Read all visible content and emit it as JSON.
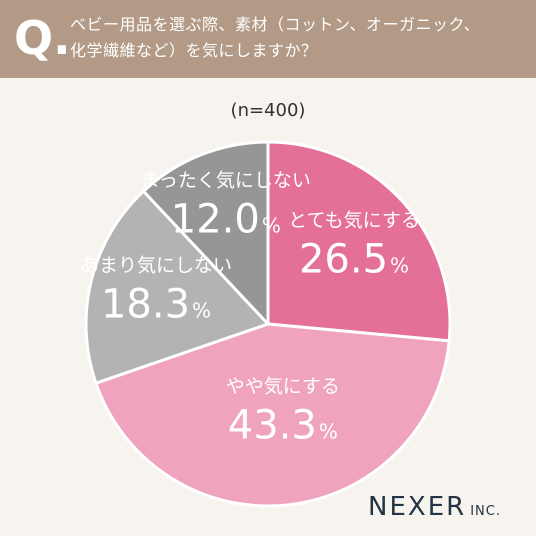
{
  "header": {
    "q_mark": "Q.",
    "question_line1": "ベビー用品を選ぶ際、素材（コットン、オーガニック、",
    "question_line2": "化学繊維など）を気にしますか？"
  },
  "sample_note": "(n=400)",
  "logo": {
    "name": "NEXER",
    "suffix": "INC."
  },
  "colors": {
    "banner": "#b29a86",
    "very": "#e46f98",
    "somewhat": "#f0a3bf",
    "not_much": "#b3b3b3",
    "not_at_all": "#969696"
  },
  "chart_data": {
    "type": "pie",
    "title": "",
    "start": "12 o'clock, clockwise",
    "slices": [
      {
        "label": "とても気にする",
        "value": 26.5,
        "display": "26.5",
        "unit": "%",
        "color": "#e46f98"
      },
      {
        "label": "やや気にする",
        "value": 43.3,
        "display": "43.3",
        "unit": "%",
        "color": "#f0a3bf"
      },
      {
        "label": "あまり気にしない",
        "value": 18.3,
        "display": "18.3",
        "unit": "%",
        "color": "#b3b3b3"
      },
      {
        "label": "まったく気にしない",
        "value": 12.0,
        "display": "12.0",
        "unit": "%",
        "color": "#969696"
      }
    ]
  }
}
